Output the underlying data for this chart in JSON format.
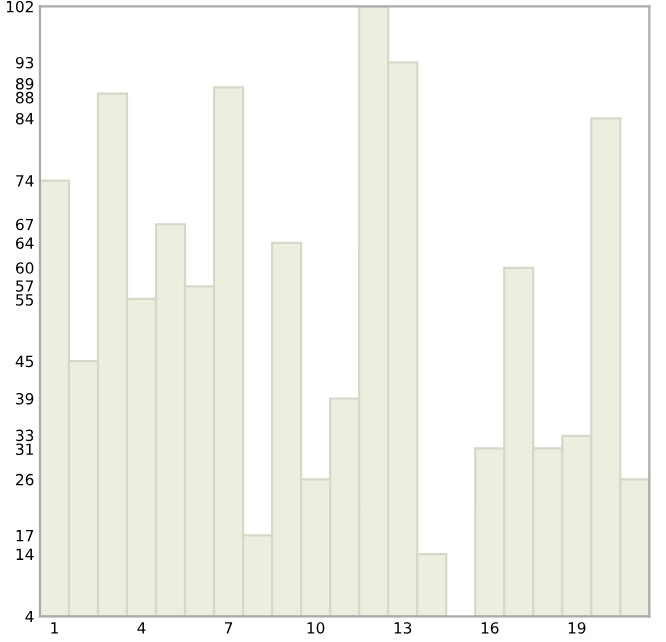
{
  "chart_data": {
    "type": "bar",
    "categories": [
      "1",
      null,
      null,
      "4",
      null,
      null,
      "7",
      null,
      null,
      "10",
      null,
      null,
      "13",
      null,
      null,
      "16",
      null,
      null,
      "19",
      null,
      null
    ],
    "values": [
      74,
      45,
      88,
      55,
      67,
      57,
      89,
      17,
      64,
      26,
      39,
      102,
      93,
      14,
      4,
      31,
      60,
      31,
      33,
      84,
      26
    ],
    "color": "#eeeee0",
    "ylim": [
      4,
      102
    ],
    "yticks": [
      4,
      14,
      17,
      26,
      31,
      33,
      39,
      45,
      55,
      57,
      60,
      64,
      67,
      74,
      84,
      88,
      89,
      93,
      102
    ],
    "grid": false,
    "legend": false
  }
}
